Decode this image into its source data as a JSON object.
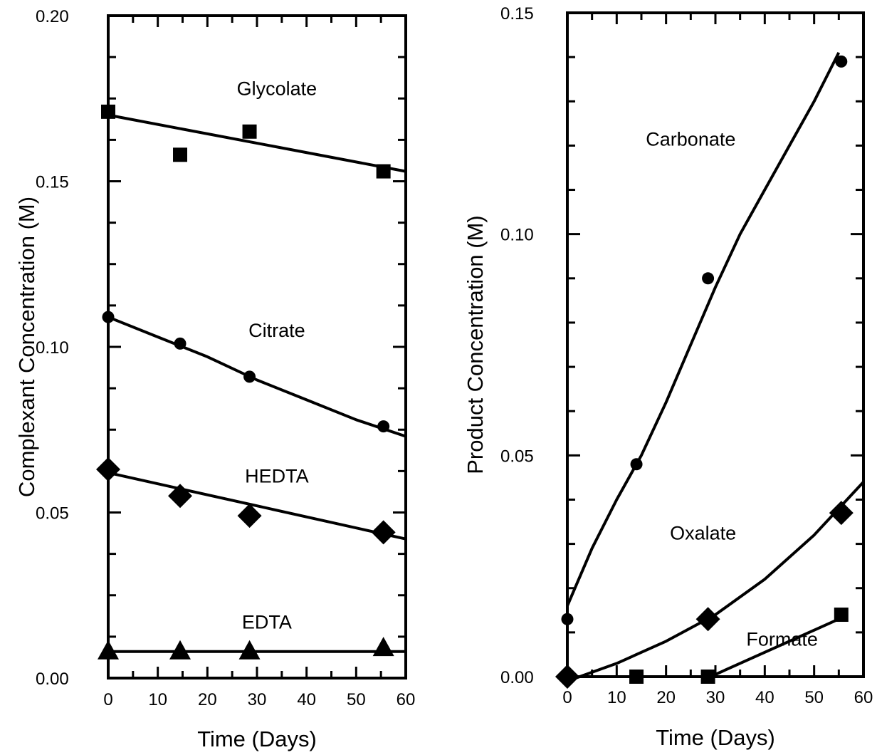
{
  "chart_data": [
    {
      "type": "scatter",
      "title": "",
      "xlabel": "Time (Days)",
      "ylabel": "Complexant Concentration (M)",
      "xlim": [
        0,
        60
      ],
      "ylim": [
        0,
        0.2
      ],
      "x_ticks": [
        0,
        10,
        20,
        30,
        40,
        50,
        60
      ],
      "y_ticks": [
        0,
        0.05,
        0.1,
        0.15,
        0.2
      ],
      "x_tick_labels": [
        "0",
        "10",
        "20",
        "30",
        "40",
        "50",
        "60"
      ],
      "y_tick_labels": [
        "0.00",
        "0.05",
        "0.10",
        "0.15",
        "0.20"
      ],
      "x_minor_step": 5,
      "y_minor_step": 0.0125,
      "grid": false,
      "legend": "none",
      "series": [
        {
          "name": "Glycolate",
          "marker": "square",
          "x": [
            0,
            14.5,
            28.5,
            55.5
          ],
          "y": [
            0.171,
            0.158,
            0.165,
            0.153
          ],
          "fit": {
            "x": [
              0,
              60
            ],
            "y": [
              0.17,
              0.153
            ]
          },
          "label_pos": {
            "x": 34,
            "y": 0.176
          }
        },
        {
          "name": "Citrate",
          "marker": "circle",
          "x": [
            0,
            14.5,
            28.5,
            55.5
          ],
          "y": [
            0.109,
            0.101,
            0.091,
            0.076
          ],
          "fit": {
            "x": [
              0,
              10,
              20,
              30,
              40,
              50,
              60
            ],
            "y": [
              0.109,
              0.103,
              0.097,
              0.09,
              0.084,
              0.078,
              0.073
            ]
          },
          "label_pos": {
            "x": 34,
            "y": 0.103
          }
        },
        {
          "name": "HEDTA",
          "marker": "diamond",
          "x": [
            0,
            14.5,
            28.5,
            55.5
          ],
          "y": [
            0.063,
            0.055,
            0.049,
            0.044
          ],
          "fit": {
            "x": [
              0,
              30,
              60
            ],
            "y": [
              0.062,
              0.052,
              0.042
            ]
          },
          "label_pos": {
            "x": 34,
            "y": 0.059
          }
        },
        {
          "name": "EDTA",
          "marker": "triangle",
          "x": [
            0,
            14.5,
            28.5,
            55.5
          ],
          "y": [
            0.008,
            0.008,
            0.008,
            0.009
          ],
          "fit": {
            "x": [
              0,
              60
            ],
            "y": [
              0.008,
              0.008
            ]
          },
          "label_pos": {
            "x": 32,
            "y": 0.015
          }
        }
      ]
    },
    {
      "type": "scatter",
      "title": "",
      "xlabel": "Time (Days)",
      "ylabel": "Product Concentration (M)",
      "xlim": [
        0,
        60
      ],
      "ylim": [
        0,
        0.15
      ],
      "x_ticks": [
        0,
        10,
        20,
        30,
        40,
        50,
        60
      ],
      "y_ticks": [
        0,
        0.05,
        0.1,
        0.15
      ],
      "x_tick_labels": [
        "0",
        "10",
        "20",
        "30",
        "40",
        "50",
        "60"
      ],
      "y_tick_labels": [
        "0.00",
        "0.05",
        "0.10",
        "0.15"
      ],
      "x_minor_step": 5,
      "y_minor_step": 0.01,
      "grid": false,
      "legend": "none",
      "series": [
        {
          "name": "Carbonate",
          "marker": "circle",
          "x": [
            0,
            14,
            28.5,
            55.5
          ],
          "y": [
            0.013,
            0.048,
            0.09,
            0.139
          ],
          "fit": {
            "x": [
              0,
              5,
              10,
              15,
              20,
              25,
              30,
              35,
              40,
              45,
              50,
              55
            ],
            "y": [
              0.016,
              0.029,
              0.04,
              0.05,
              0.062,
              0.075,
              0.088,
              0.1,
              0.11,
              0.12,
              0.13,
              0.141
            ]
          },
          "label_pos": {
            "x": 25,
            "y": 0.12
          }
        },
        {
          "name": "Oxalate",
          "marker": "diamond",
          "x": [
            0,
            28.5,
            55.5
          ],
          "y": [
            0,
            0.013,
            0.037
          ],
          "fit": {
            "x": [
              0,
              10,
              20,
              30,
              40,
              50,
              60
            ],
            "y": [
              -0.001,
              0.003,
              0.008,
              0.014,
              0.022,
              0.032,
              0.044
            ]
          },
          "label_pos": {
            "x": 27.5,
            "y": 0.031
          }
        },
        {
          "name": "Formate",
          "marker": "square",
          "x": [
            14,
            28.5,
            55.5
          ],
          "y": [
            0,
            0,
            0.014
          ],
          "fit": {
            "x": [
              29,
              55
            ],
            "y": [
              0,
              0.013
            ]
          },
          "label_pos": {
            "x": 43.5,
            "y": 0.007
          }
        }
      ]
    }
  ]
}
